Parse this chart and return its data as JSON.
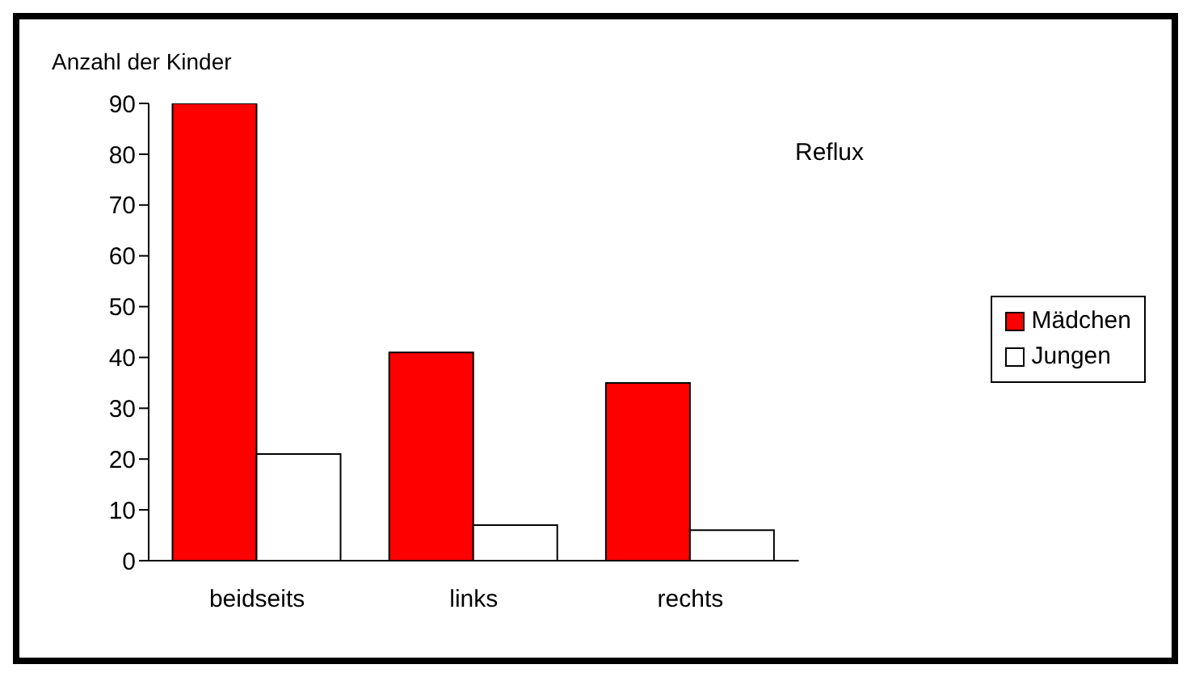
{
  "chart_data": {
    "type": "bar",
    "title": "Reflux",
    "ylabel": "Anzahl der Kinder",
    "categories": [
      "beidseits",
      "links",
      "rechts"
    ],
    "series": [
      {
        "name": "Mädchen",
        "color": "#ff0000",
        "values": [
          90,
          41,
          35
        ]
      },
      {
        "name": "Jungen",
        "color": "#ffffff",
        "values": [
          21,
          7,
          6
        ]
      }
    ],
    "ylim": [
      0,
      90
    ],
    "yticks": [
      0,
      10,
      20,
      30,
      40,
      50,
      60,
      70,
      80,
      90
    ],
    "grid": false,
    "legend": "right"
  }
}
